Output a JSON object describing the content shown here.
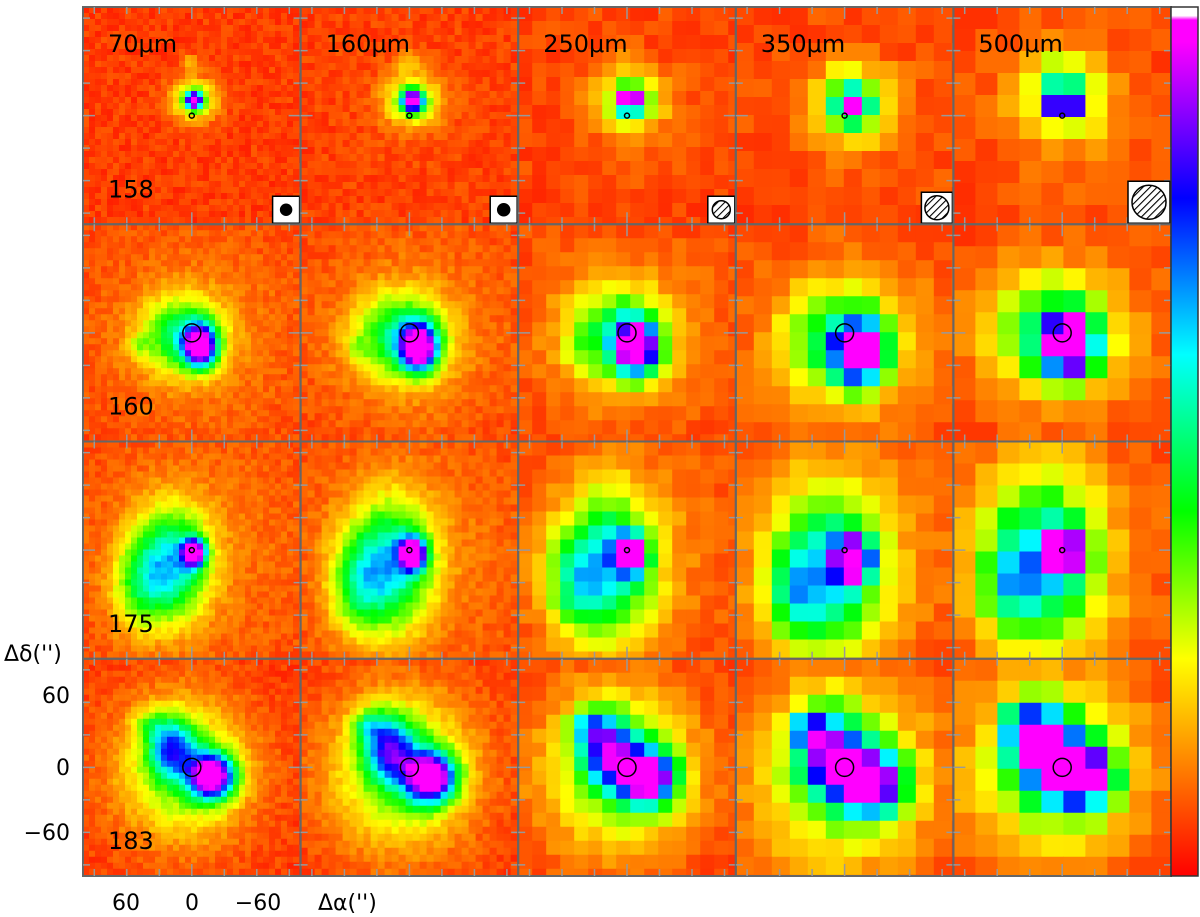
{
  "wavelengths": [
    "70μm",
    "160μm",
    "250μm",
    "350μm",
    "500μm"
  ],
  "sources": [
    {
      "id": "158",
      "circle": "small",
      "morph": "compact"
    },
    {
      "id": "160",
      "circle": "large",
      "morph": "extended"
    },
    {
      "id": "175",
      "circle": "small",
      "morph": "cometary"
    },
    {
      "id": "183",
      "circle": "large",
      "morph": "double"
    }
  ],
  "beam_markers": [
    "filled",
    "filled",
    "hatched",
    "hatched",
    "hatched"
  ],
  "axes": {
    "y_label": "Δδ('')",
    "x_label": "Δα('')",
    "y_ticks": [
      "60",
      "0",
      "−60"
    ],
    "x_ticks": [
      "60",
      "0",
      "−60"
    ]
  },
  "colorbar": {
    "stops": [
      "#ff0000",
      "#ff8800",
      "#ffff00",
      "#00ff00",
      "#00ffff",
      "#0000ff",
      "#ff00ff",
      "#ffffff"
    ]
  },
  "colors": {
    "background": "#f7401a",
    "frame": "#666666",
    "ticks": "#999999"
  }
}
